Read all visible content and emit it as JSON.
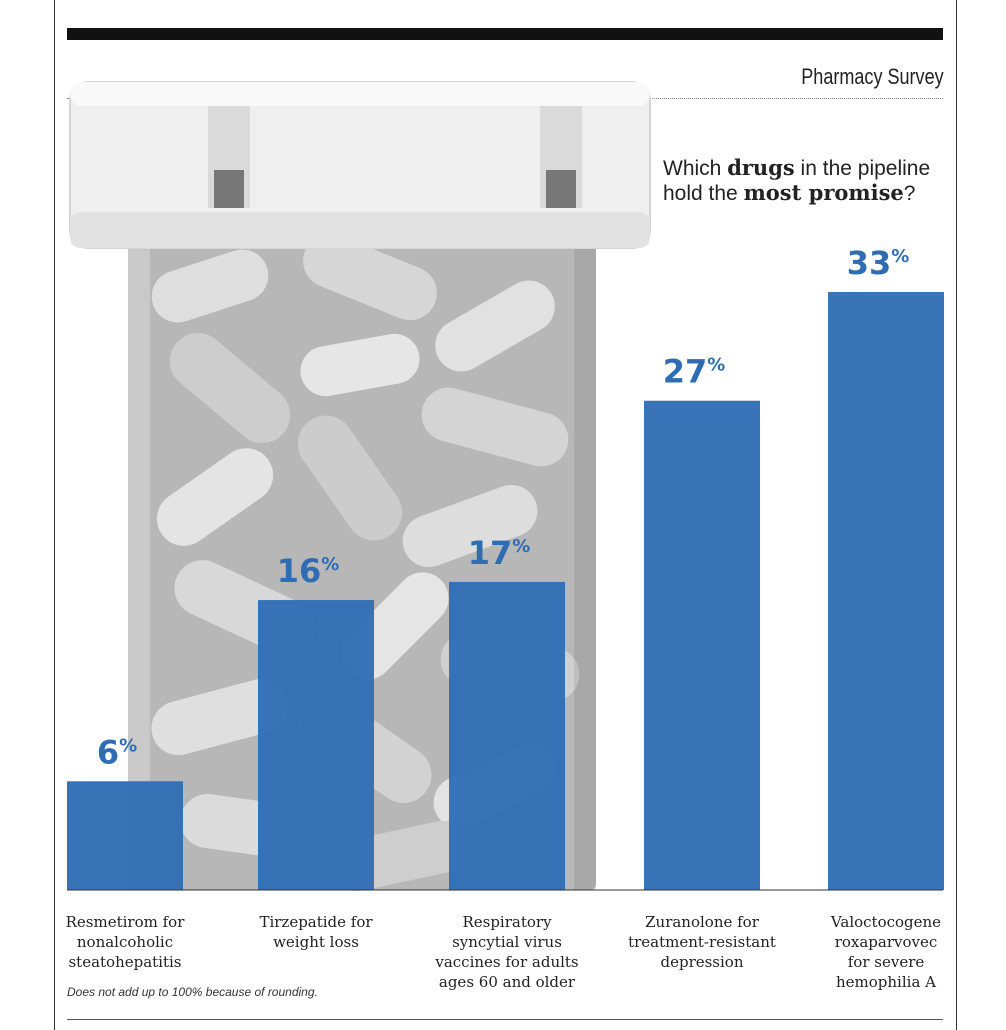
{
  "header": {
    "section": "Pharmacy Survey"
  },
  "question": {
    "p1": "Which ",
    "b1": "drugs",
    "p2": " in the pipeline hold the ",
    "b2": "most promise",
    "p3": "?"
  },
  "colors": {
    "bar": "#2e6db4",
    "value": "#2e6db4"
  },
  "chart_data": {
    "type": "bar",
    "categories": [
      "Resmetirom for nonalcoholic steatohepatitis",
      "Tirzepatide for weight loss",
      "Respiratory syncytial virus vaccines for adults ages 60 and older",
      "Zuranolone for treatment-resistant depression",
      "Valoctocogene roxaparvovec for severe hemophilia A"
    ],
    "values": [
      6,
      16,
      17,
      27,
      33
    ],
    "value_suffix": "%",
    "title": "",
    "xlabel": "",
    "ylabel": "",
    "ylim": [
      0,
      33
    ],
    "grid": false
  },
  "labels": [
    [
      "Resmetirom for",
      "nonalcoholic",
      "steatohepatitis"
    ],
    [
      "Tirzepatide for",
      "weight loss"
    ],
    [
      "Respiratory",
      "syncytial virus",
      "vaccines for adults",
      "ages 60 and older"
    ],
    [
      "Zuranolone for",
      "treatment-resistant",
      "depression"
    ],
    [
      "Valoctocogene",
      "roxaparvovec",
      "for severe",
      "hemophilia A"
    ]
  ],
  "footnote": "Does not add up to 100% because of rounding.",
  "illustration": {
    "icon": "pill-bottle-icon"
  }
}
